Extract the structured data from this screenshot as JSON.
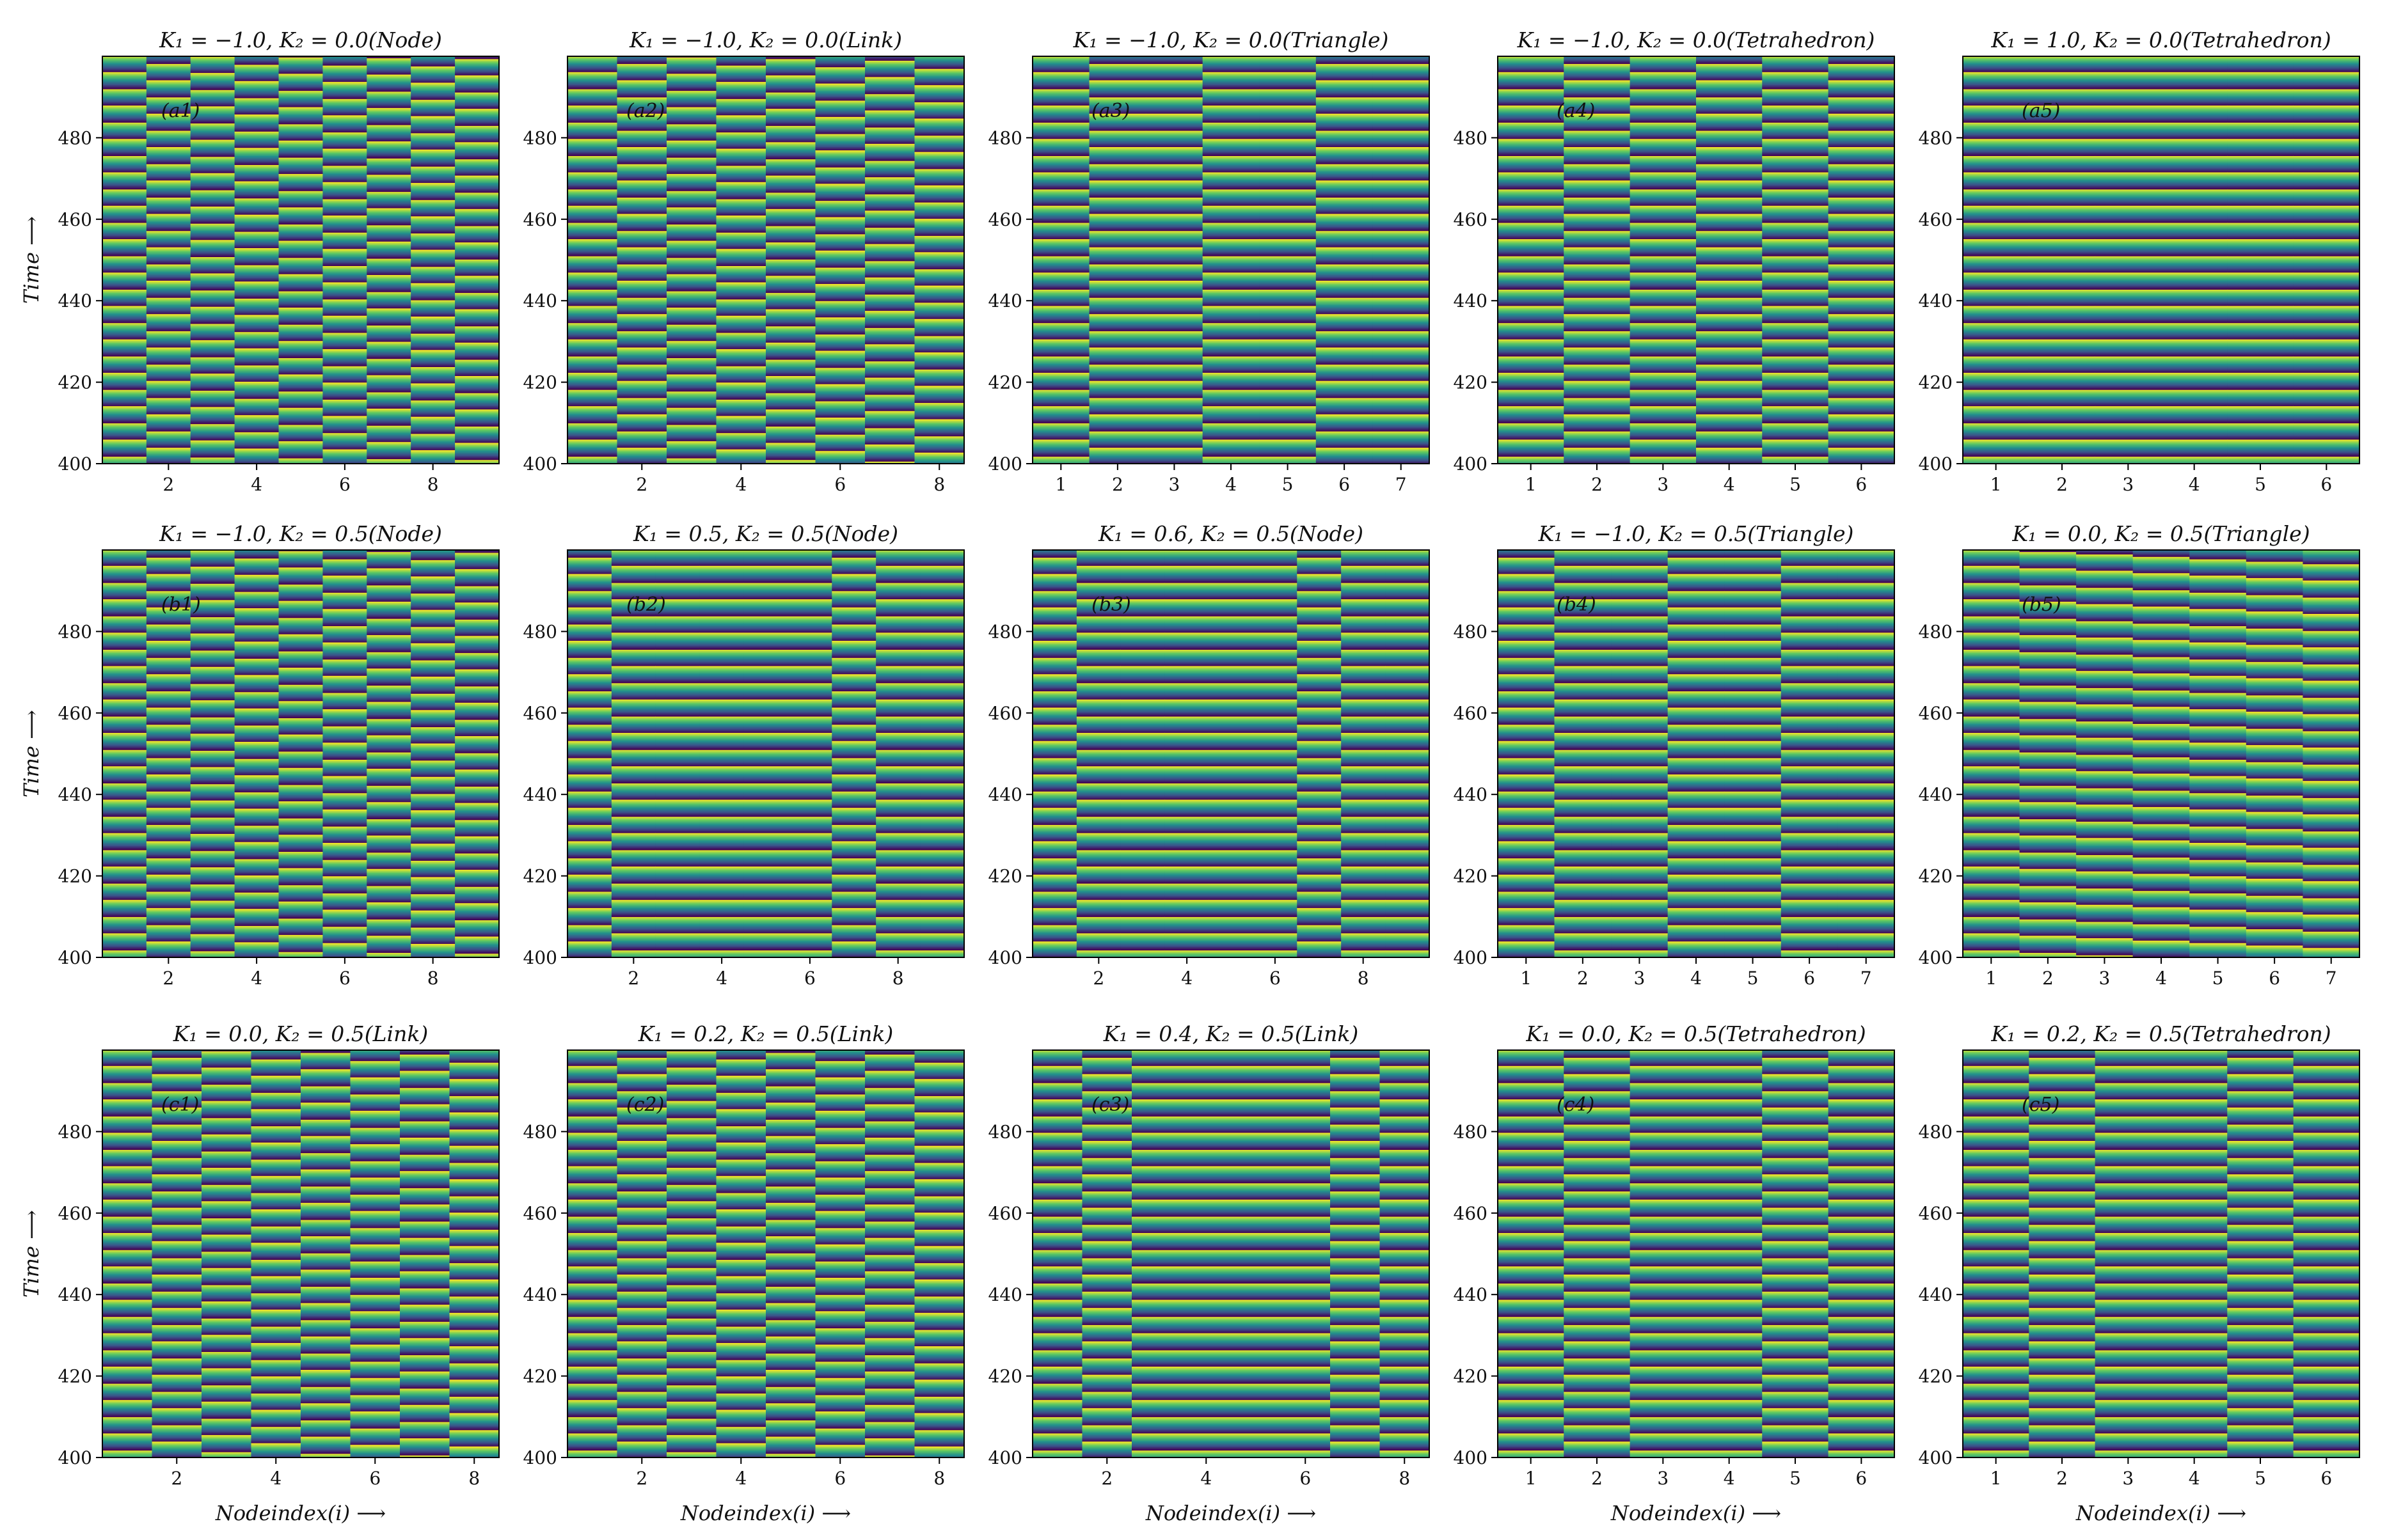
{
  "figure": {
    "ylabel": "Time ⟶",
    "xlabel": "Nodeindex(i) ⟶"
  },
  "chart_data": [
    {
      "type": "heatmap",
      "title": "K₁ = −1.0, K₂ = 0.0(Node)",
      "panel_label": "(a1)",
      "ylim": [
        400,
        500
      ],
      "yticks": [
        400,
        420,
        440,
        460,
        480
      ],
      "n_nodes": 9,
      "xticks": [
        2,
        4,
        6,
        8
      ],
      "phase_offsets": [
        0.0,
        0.5,
        0.05,
        0.55,
        0.1,
        0.6,
        0.15,
        0.65,
        0.2
      ],
      "period": 4.1
    },
    {
      "type": "heatmap",
      "title": "K₁ = −1.0, K₂ = 0.0(Link)",
      "panel_label": "(a2)",
      "ylim": [
        400,
        500
      ],
      "yticks": [
        400,
        420,
        440,
        460,
        480
      ],
      "n_nodes": 8,
      "xticks": [
        2,
        4,
        6,
        8
      ],
      "phase_offsets": [
        0.0,
        0.5,
        0.1,
        0.6,
        0.2,
        0.7,
        0.3,
        0.8
      ],
      "period": 4.1
    },
    {
      "type": "heatmap",
      "title": "K₁ = −1.0, K₂ = 0.0(Triangle)",
      "panel_label": "(a3)",
      "ylim": [
        400,
        500
      ],
      "yticks": [
        400,
        420,
        440,
        460,
        480
      ],
      "n_nodes": 7,
      "xticks": [
        1,
        2,
        3,
        4,
        5,
        6,
        7
      ],
      "phase_offsets": [
        0.0,
        0.5,
        0.5,
        0.0,
        0.0,
        0.5,
        0.5
      ],
      "period": 4.1
    },
    {
      "type": "heatmap",
      "title": "K₁ = −1.0, K₂ = 0.0(Tetrahedron)",
      "panel_label": "(a4)",
      "ylim": [
        400,
        500
      ],
      "yticks": [
        400,
        420,
        440,
        460,
        480
      ],
      "n_nodes": 6,
      "xticks": [
        1,
        2,
        3,
        4,
        5,
        6
      ],
      "phase_offsets": [
        0.0,
        0.5,
        0.0,
        0.5,
        0.0,
        0.5
      ],
      "period": 4.1
    },
    {
      "type": "heatmap",
      "title": "K₁ = 1.0, K₂ = 0.0(Tetrahedron)",
      "panel_label": "(a5)",
      "ylim": [
        400,
        500
      ],
      "yticks": [
        400,
        420,
        440,
        460,
        480
      ],
      "n_nodes": 6,
      "xticks": [
        1,
        2,
        3,
        4,
        5,
        6
      ],
      "phase_offsets": [
        0.0,
        0.0,
        0.0,
        0.0,
        0.0,
        0.0
      ],
      "period": 4.1
    },
    {
      "type": "heatmap",
      "title": "K₁ = −1.0, K₂ = 0.5(Node)",
      "panel_label": "(b1)",
      "ylim": [
        400,
        500
      ],
      "yticks": [
        400,
        420,
        440,
        460,
        480
      ],
      "n_nodes": 9,
      "xticks": [
        2,
        4,
        6,
        8
      ],
      "phase_offsets": [
        0.0,
        0.5,
        0.05,
        0.55,
        0.1,
        0.6,
        0.15,
        0.65,
        0.2
      ],
      "period": 4.1
    },
    {
      "type": "heatmap",
      "title": "K₁ = 0.5, K₂ = 0.5(Node)",
      "panel_label": "(b2)",
      "ylim": [
        400,
        500
      ],
      "yticks": [
        400,
        420,
        440,
        460,
        480
      ],
      "n_nodes": 9,
      "xticks": [
        2,
        4,
        6,
        8
      ],
      "phase_offsets": [
        0.5,
        0.0,
        0.0,
        0.0,
        0.0,
        0.0,
        0.5,
        0.0,
        0.0
      ],
      "period": 4.1
    },
    {
      "type": "heatmap",
      "title": "K₁ = 0.6, K₂ = 0.5(Node)",
      "panel_label": "(b3)",
      "ylim": [
        400,
        500
      ],
      "yticks": [
        400,
        420,
        440,
        460,
        480
      ],
      "n_nodes": 9,
      "xticks": [
        2,
        4,
        6,
        8
      ],
      "phase_offsets": [
        0.5,
        0.0,
        0.0,
        0.0,
        0.0,
        0.0,
        0.5,
        0.0,
        0.0
      ],
      "period": 4.1
    },
    {
      "type": "heatmap",
      "title": "K₁ = −1.0, K₂ = 0.5(Triangle)",
      "panel_label": "(b4)",
      "ylim": [
        400,
        500
      ],
      "yticks": [
        400,
        420,
        440,
        460,
        480
      ],
      "n_nodes": 7,
      "xticks": [
        1,
        2,
        3,
        4,
        5,
        6,
        7
      ],
      "phase_offsets": [
        0.5,
        0.0,
        0.0,
        0.5,
        0.5,
        0.0,
        0.0
      ],
      "period": 4.1
    },
    {
      "type": "heatmap",
      "title": "K₁ = 0.0, K₂ = 0.5(Triangle)",
      "panel_label": "(b5)",
      "ylim": [
        400,
        500
      ],
      "yticks": [
        400,
        420,
        440,
        460,
        480
      ],
      "n_nodes": 7,
      "xticks": [
        1,
        2,
        3,
        4,
        5,
        6,
        7
      ],
      "phase_offsets": [
        0.0,
        0.15,
        0.3,
        0.45,
        0.6,
        0.75,
        0.9
      ],
      "period": 4.1
    },
    {
      "type": "heatmap",
      "title": "K₁ = 0.0, K₂ = 0.5(Link)",
      "panel_label": "(c1)",
      "ylim": [
        400,
        500
      ],
      "yticks": [
        400,
        420,
        440,
        460,
        480
      ],
      "n_nodes": 8,
      "xticks": [
        2,
        4,
        6,
        8
      ],
      "phase_offsets": [
        0.0,
        0.5,
        0.1,
        0.6,
        0.2,
        0.7,
        0.3,
        0.8
      ],
      "period": 4.1
    },
    {
      "type": "heatmap",
      "title": "K₁ = 0.2, K₂ = 0.5(Link)",
      "panel_label": "(c2)",
      "ylim": [
        400,
        500
      ],
      "yticks": [
        400,
        420,
        440,
        460,
        480
      ],
      "n_nodes": 8,
      "xticks": [
        2,
        4,
        6,
        8
      ],
      "phase_offsets": [
        0.0,
        0.5,
        0.1,
        0.6,
        0.2,
        0.7,
        0.3,
        0.8
      ],
      "period": 4.1
    },
    {
      "type": "heatmap",
      "title": "K₁ = 0.4, K₂ = 0.5(Link)",
      "panel_label": "(c3)",
      "ylim": [
        400,
        500
      ],
      "yticks": [
        400,
        420,
        440,
        460,
        480
      ],
      "n_nodes": 8,
      "xticks": [
        2,
        4,
        6,
        8
      ],
      "phase_offsets": [
        0.0,
        0.5,
        0.0,
        0.0,
        0.0,
        0.0,
        0.5,
        0.0
      ],
      "period": 4.1
    },
    {
      "type": "heatmap",
      "title": "K₁ = 0.0, K₂ = 0.5(Tetrahedron)",
      "panel_label": "(c4)",
      "ylim": [
        400,
        500
      ],
      "yticks": [
        400,
        420,
        440,
        460,
        480
      ],
      "n_nodes": 6,
      "xticks": [
        1,
        2,
        3,
        4,
        5,
        6
      ],
      "phase_offsets": [
        0.0,
        0.5,
        0.0,
        0.0,
        0.5,
        0.0
      ],
      "period": 4.1
    },
    {
      "type": "heatmap",
      "title": "K₁ = 0.2, K₂ = 0.5(Tetrahedron)",
      "panel_label": "(c5)",
      "ylim": [
        400,
        500
      ],
      "yticks": [
        400,
        420,
        440,
        460,
        480
      ],
      "n_nodes": 6,
      "xticks": [
        1,
        2,
        3,
        4,
        5,
        6
      ],
      "phase_offsets": [
        0.0,
        0.5,
        0.0,
        0.0,
        0.5,
        0.0
      ],
      "period": 4.1
    }
  ],
  "colormap": [
    "#440154",
    "#3b528b",
    "#21918c",
    "#5ec962",
    "#fde725"
  ]
}
